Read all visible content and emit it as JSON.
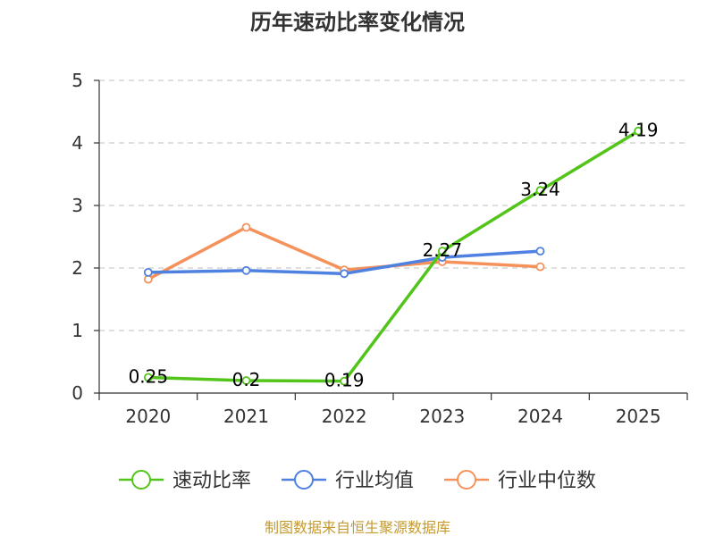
{
  "chart_data": {
    "type": "line",
    "title": "历年速动比率变化情况",
    "categories": [
      "2020",
      "2021",
      "2022",
      "2023",
      "2024",
      "2025"
    ],
    "y_ticks": [
      "0",
      "1",
      "2",
      "3",
      "4",
      "5"
    ],
    "ylim": [
      0,
      5
    ],
    "grid": true,
    "legend_position": "bottom",
    "series": [
      {
        "name": "速动比率",
        "color": "#52c41a",
        "values": [
          0.25,
          0.2,
          0.19,
          2.27,
          3.24,
          4.19
        ],
        "labels": [
          "0.25",
          "0.2",
          "0.19",
          "2.27",
          "3.24",
          "4.19"
        ]
      },
      {
        "name": "行业均值",
        "color": "#4f81e0",
        "values": [
          1.93,
          1.96,
          1.91,
          2.17,
          2.27,
          null
        ]
      },
      {
        "name": "行业中位数",
        "color": "#f5925b",
        "values": [
          1.82,
          2.65,
          1.97,
          2.1,
          2.02,
          null
        ]
      }
    ],
    "source": "制图数据来自恒生聚源数据库",
    "source_color": "#c49a2f"
  }
}
